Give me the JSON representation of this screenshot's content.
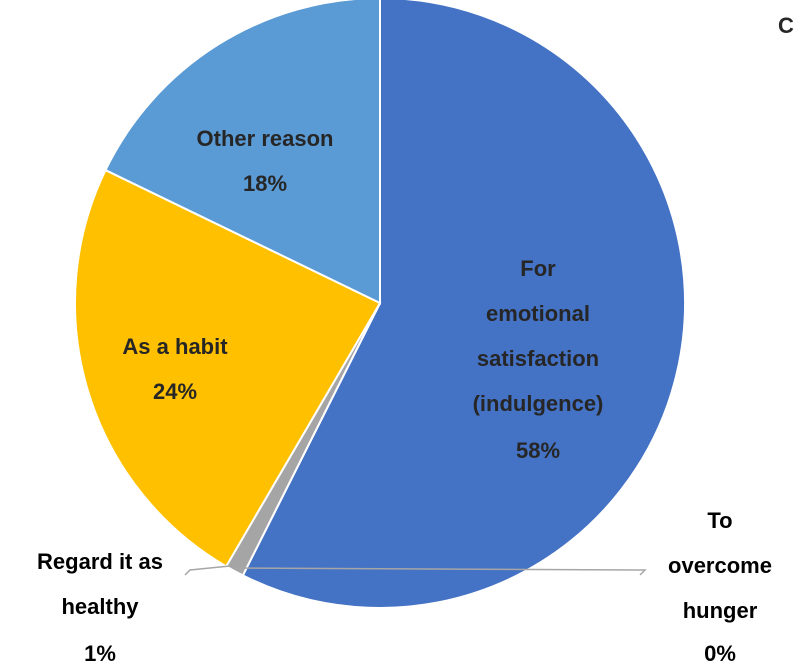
{
  "chart_data": {
    "type": "pie",
    "title": "C",
    "categories": [
      "For\nemotional\nsatisfaction\n(indulgence)",
      "To\novercome\nhunger",
      "Regard it as\nhealthy",
      "As a habit",
      "Other reason"
    ],
    "values": [
      58,
      0,
      1,
      24,
      18
    ],
    "value_labels": [
      "58%",
      "0%",
      "1%",
      "24%",
      "18%"
    ],
    "colors": [
      "#4472c4",
      "#ed7d31",
      "#a5a5a5",
      "#ffc000",
      "#5b9bd5"
    ]
  }
}
